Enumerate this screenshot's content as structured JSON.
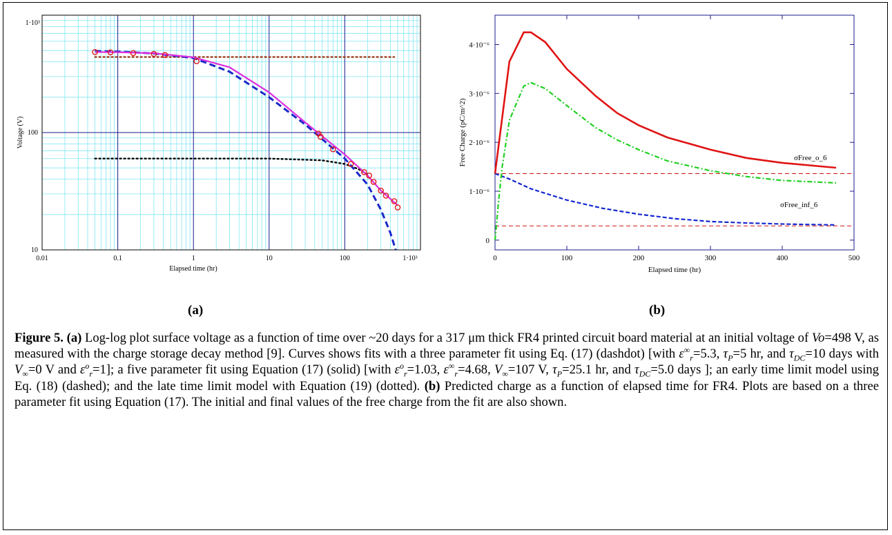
{
  "panel_a": {
    "label": "(a)",
    "xlabel": "Elapsed time (hr)",
    "ylabel": "Voltage (V)",
    "xticks": [
      "0.01",
      "0.1",
      "1",
      "10",
      "100",
      "1·10³"
    ],
    "yticks": [
      "10",
      "100",
      "1·10³"
    ]
  },
  "panel_b": {
    "label": "(b)",
    "xlabel": "Elapsed time (hr)",
    "ylabel": "Free Charge (pC/m^2)",
    "xticks": [
      "0",
      "100",
      "200",
      "300",
      "400",
      "500"
    ],
    "yticks": [
      "0",
      "1·10⁻⁶",
      "2·10⁻⁶",
      "3·10⁻⁶",
      "4·10⁻⁶"
    ],
    "annotation_o": "σFree_o_6",
    "annotation_inf": "σFree_inf_6"
  },
  "chart_data": [
    {
      "type": "line",
      "xscale": "log",
      "yscale": "log",
      "xlim": [
        0.01,
        1000
      ],
      "ylim": [
        10,
        1000
      ],
      "xlabel": "Elapsed time (hr)",
      "ylabel": "Voltage (V)",
      "grid": true,
      "colors": {
        "measured": "#dd1a1a",
        "five_param": "#e030e0",
        "three_param": "#1a28c8",
        "early": "#1a28c8",
        "late_upper": "#993b1a",
        "late_lower": "#000000"
      },
      "series": [
        {
          "style": "markers",
          "x": [
            0.05,
            0.08,
            0.16,
            0.3,
            0.42,
            1.1,
            45,
            48,
            70,
            120,
            180,
            210,
            240,
            300,
            350,
            450,
            500
          ],
          "y": [
            485,
            482,
            475,
            468,
            458,
            405,
            98,
            92,
            72,
            54,
            46,
            43,
            38,
            32,
            29,
            26,
            23
          ]
        },
        {
          "style": "solid",
          "x": [
            0.05,
            0.1,
            0.3,
            1,
            3,
            10,
            30,
            100,
            200,
            300,
            500
          ],
          "y": [
            485,
            484,
            474,
            438,
            360,
            220,
            122,
            65,
            43,
            32,
            24
          ]
        },
        {
          "style": "dashdot",
          "x": [
            0.05,
            0.1,
            0.3,
            1,
            3,
            10,
            30,
            100,
            200,
            300,
            500
          ],
          "y": [
            485,
            484,
            474,
            438,
            360,
            220,
            122,
            65,
            43,
            32,
            24
          ]
        },
        {
          "style": "dashed",
          "x": [
            0.05,
            0.1,
            0.3,
            1,
            3,
            10,
            30,
            100,
            200,
            300,
            400,
            470
          ],
          "y": [
            495,
            490,
            472,
            432,
            330,
            200,
            117,
            60,
            36,
            22,
            14,
            10
          ]
        },
        {
          "style": "dotted",
          "x": [
            0.05,
            0.1,
            1,
            10,
            100,
            450
          ],
          "y": [
            440,
            440,
            440,
            440,
            440,
            440
          ]
        },
        {
          "style": "dotted",
          "x": [
            0.05,
            1,
            10,
            50,
            100,
            150,
            200
          ],
          "y": [
            60,
            60,
            60,
            58,
            54,
            49,
            44
          ]
        }
      ]
    },
    {
      "type": "line",
      "xlim": [
        0,
        500
      ],
      "ylim": [
        -2e-07,
        4.6e-06
      ],
      "xlabel": "Elapsed time (hr)",
      "ylabel": "Free Charge (pC/m^2)",
      "colors": {
        "total": "#e01414",
        "green": "#20d020",
        "blue": "#1428d0",
        "ref": "#cc1111"
      },
      "series": [
        {
          "style": "solid",
          "x": [
            0,
            20,
            40,
            50,
            70,
            100,
            140,
            170,
            200,
            240,
            300,
            350,
            400,
            475
          ],
          "y": [
            1.36e-06,
            3.65e-06,
            4.25e-06,
            4.25e-06,
            4.05e-06,
            3.5e-06,
            2.95e-06,
            2.6e-06,
            2.35e-06,
            2.1e-06,
            1.85e-06,
            1.68e-06,
            1.58e-06,
            1.48e-06
          ]
        },
        {
          "style": "dashdot",
          "x": [
            0,
            5,
            10,
            20,
            40,
            50,
            70,
            100,
            140,
            170,
            200,
            240,
            300,
            350,
            400,
            475
          ],
          "y": [
            0,
            8e-07,
            1.5e-06,
            2.45e-06,
            3.15e-06,
            3.22e-06,
            3.1e-06,
            2.75e-06,
            2.3e-06,
            2.05e-06,
            1.85e-06,
            1.62e-06,
            1.42e-06,
            1.3e-06,
            1.22e-06,
            1.17e-06
          ]
        },
        {
          "style": "dashed",
          "x": [
            0,
            20,
            50,
            100,
            150,
            200,
            250,
            300,
            350,
            400,
            475
          ],
          "y": [
            1.36e-06,
            1.25e-06,
            1.05e-06,
            8.2e-07,
            6.5e-07,
            5.3e-07,
            4.4e-07,
            3.8e-07,
            3.5e-07,
            3.3e-07,
            3.1e-07
          ]
        },
        {
          "style": "dashed-ref",
          "x": [
            0,
            500
          ],
          "y": [
            1.36e-06,
            1.36e-06
          ]
        },
        {
          "style": "dashed-ref",
          "x": [
            0,
            500
          ],
          "y": [
            2.9e-07,
            2.9e-07
          ]
        }
      ]
    }
  ],
  "caption": {
    "fig": "Figure 5.",
    "a_label": "(a)",
    "t1": " Log-log plot surface voltage as a function of time over ~20 days for a  317 μm thick FR4 printed circuit board material at an initial voltage of ",
    "vo": "Vo",
    "t2": "=498 V, as measured with the charge storage decay method [9]. Curves shows fits with a three parameter fit using Eq. (17) (dashdot) [with ",
    "t3": "=5.3, ",
    "t4": "=5 hr, and ",
    "t5": "=10 days with ",
    "t6": "=0 V and ",
    "t7": "=1]; a five parameter fit using Equation (17) (solid) [with ",
    "t8": "=1.03, ",
    "t9": "=4.68, ",
    "t10": "=107 V, ",
    "t11": "=25.1 hr, and ",
    "t12": "=5.0 days ]; an early time limit model using Eq. (18) (dashed); and the late time limit model with Equation (19) (dotted).  ",
    "b_label": "(b)",
    "t13": " Predicted charge as a function of elapsed time for FR4. Plots are based on a three parameter fit using Equation (17).  The initial and final values of the free charge from the fit are also shown."
  }
}
